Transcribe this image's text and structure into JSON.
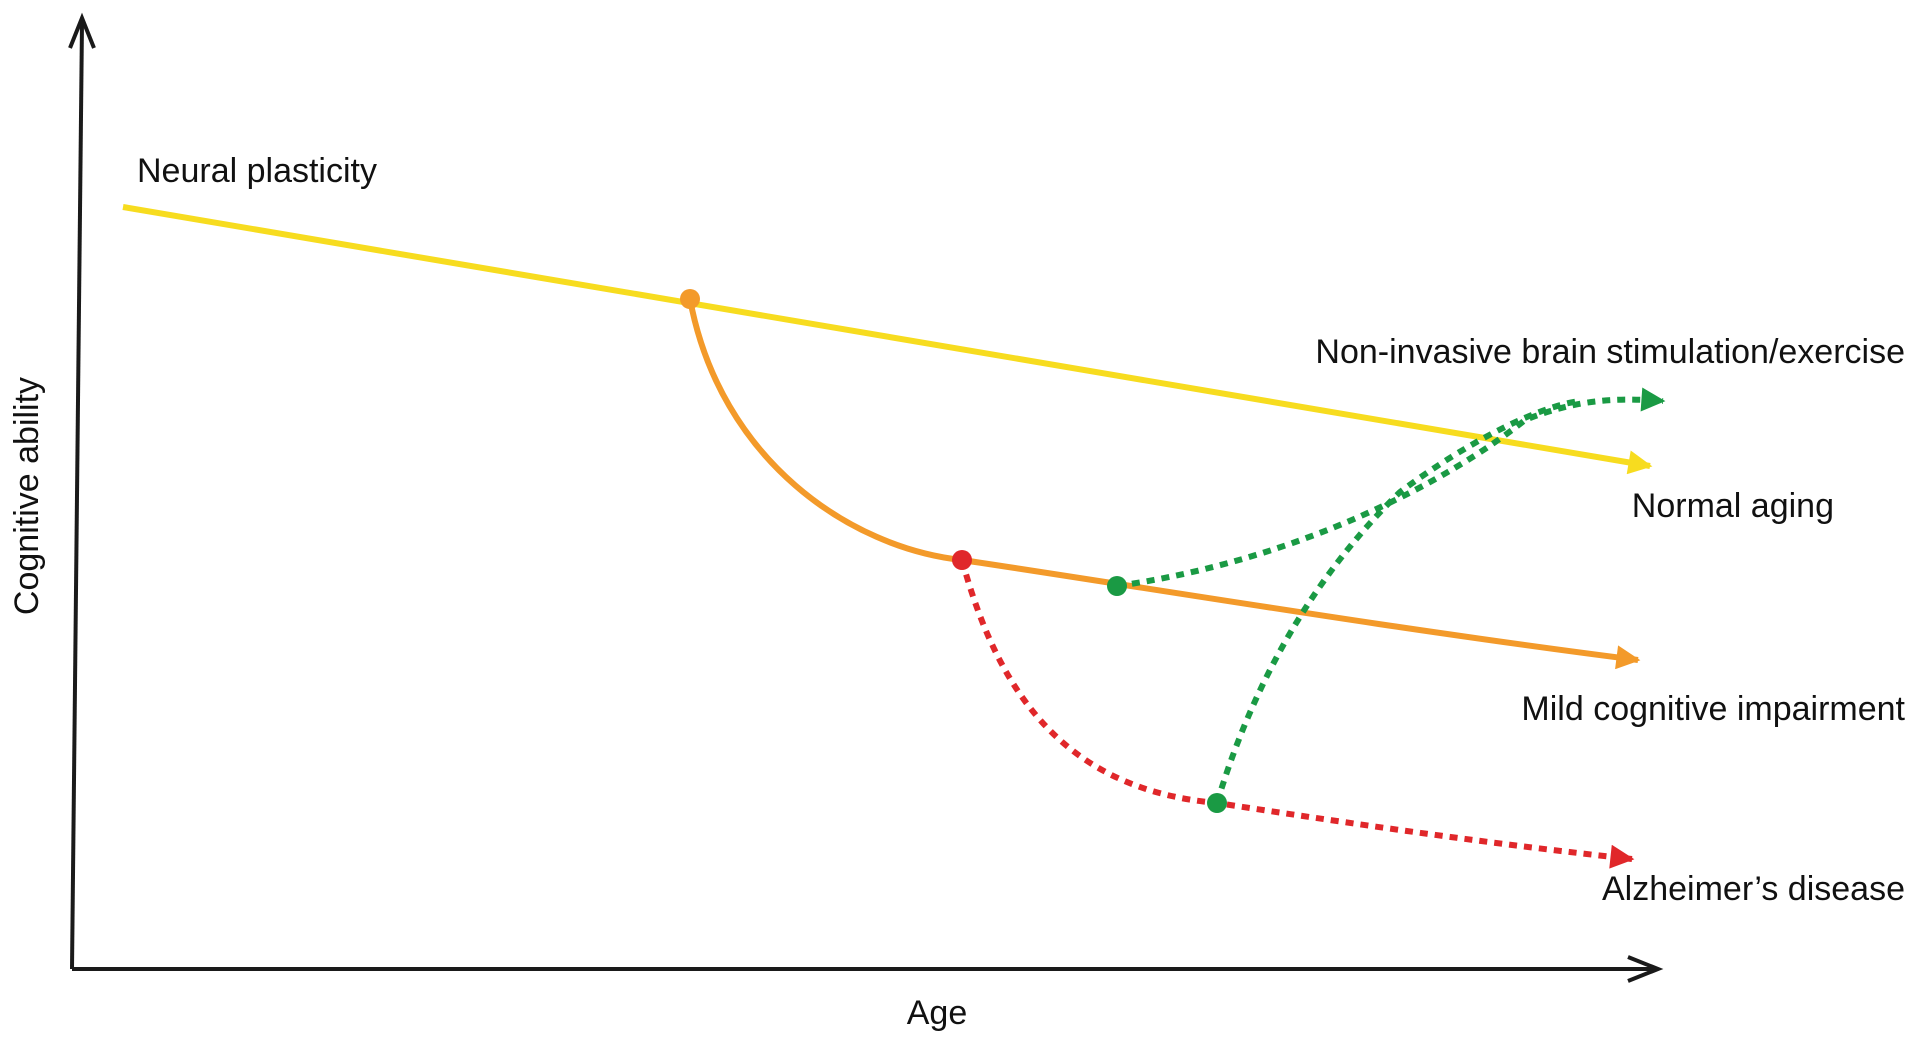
{
  "labels": {
    "y_axis": "Cognitive ability",
    "x_axis": "Age",
    "neural_plasticity": "Neural plasticity",
    "non_invasive": "Non-invasive brain stimulation/exercise",
    "normal_aging": "Normal aging",
    "mild_cognitive_impairment": "Mild cognitive impairment",
    "alzheimers": "Alzheimer’s disease"
  },
  "colors": {
    "axis": "#1a1a1a",
    "normal_aging": "#f7dc1f",
    "mild_cognitive_impairment": "#f39a2a",
    "alzheimers": "#e0272a",
    "intervention": "#1a9a44"
  }
}
